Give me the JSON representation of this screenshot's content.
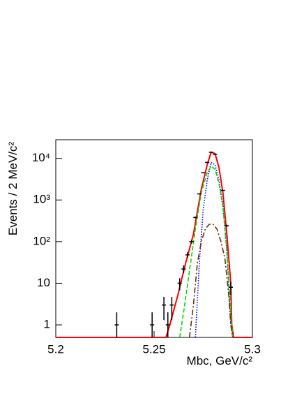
{
  "chart_data": {
    "type": "line",
    "x_label": "Mbc, GeV/c²",
    "y_label": "Events / 2 MeV/c²",
    "xlim": [
      5.2,
      5.3
    ],
    "xticks": [
      5.2,
      5.25,
      5.3
    ],
    "ylim": [
      0.5,
      28000
    ],
    "log_y": true,
    "yticks": [
      1,
      10,
      {
        "value": 100,
        "label": "10²"
      },
      {
        "value": 1000,
        "label": "10³"
      },
      {
        "value": 10000,
        "label": "10⁴"
      }
    ],
    "points": {
      "color": "#000000",
      "x": [
        5.231,
        5.249,
        5.255,
        5.257,
        5.259,
        5.263,
        5.265,
        5.267,
        5.269,
        5.271,
        5.273,
        5.275,
        5.277,
        5.279,
        5.281,
        5.285,
        5.287,
        5.289
      ],
      "values": [
        1,
        1,
        3,
        1,
        3,
        10,
        22,
        48,
        100,
        380,
        1400,
        4500,
        8000,
        14000,
        12500,
        1700,
        240,
        8
      ],
      "errors": [
        1,
        1,
        1.7,
        1,
        1.7,
        3.2,
        4.7,
        7,
        10,
        19,
        37,
        67,
        89,
        118,
        112,
        41,
        15,
        2.8
      ]
    },
    "series": [
      {
        "color": "#ff0000",
        "dash": "none",
        "x": [
          5.2,
          5.256,
          5.258,
          5.262,
          5.266,
          5.27,
          5.274,
          5.277,
          5.279,
          5.281,
          5.283,
          5.285,
          5.287,
          5.289,
          5.2895,
          5.2905,
          5.3
        ],
        "values": [
          0.5,
          0.5,
          1,
          5,
          30,
          150,
          1800,
          7000,
          14000,
          13000,
          6000,
          1500,
          150,
          10,
          1,
          0.5,
          0.5
        ]
      },
      {
        "color": "#0000ff",
        "dash": "1.5,2",
        "x": [
          5.271,
          5.273,
          5.275,
          5.277,
          5.279,
          5.281,
          5.283,
          5.285,
          5.287,
          5.289,
          5.29
        ],
        "values": [
          0.5,
          30,
          600,
          3000,
          8000,
          7000,
          3000,
          700,
          60,
          1,
          0.5
        ]
      },
      {
        "color": "#00dd00",
        "dash": "6,3",
        "x": [
          5.263,
          5.265,
          5.268,
          5.271,
          5.274,
          5.277,
          5.279,
          5.281,
          5.283,
          5.285,
          5.287,
          5.289,
          5.29
        ],
        "values": [
          0.5,
          2,
          20,
          200,
          1500,
          4500,
          6500,
          5500,
          2500,
          700,
          60,
          2,
          0.5
        ]
      },
      {
        "color": "#663300",
        "dash": "8,3,2,3",
        "x": [
          5.268,
          5.27,
          5.272,
          5.274,
          5.276,
          5.278,
          5.28,
          5.282,
          5.284,
          5.286,
          5.288,
          5.289,
          5.29
        ],
        "values": [
          0.5,
          3,
          30,
          100,
          200,
          260,
          260,
          200,
          100,
          40,
          5,
          1,
          0.5
        ]
      }
    ]
  }
}
